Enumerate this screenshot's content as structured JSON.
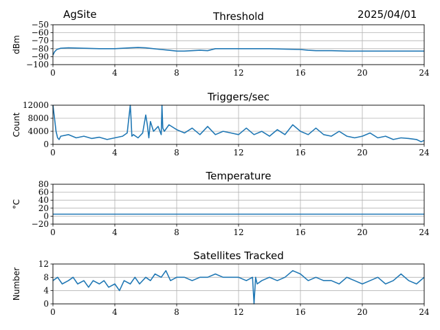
{
  "header": {
    "site": "AgSite",
    "date": "2025/04/01"
  },
  "colors": {
    "line": "#1f77b4",
    "grid": "#b0b0b0"
  },
  "chart_data": [
    {
      "type": "line",
      "title": "Threshold",
      "ylabel": "dBm",
      "xlabel": "",
      "xlim": [
        0,
        24
      ],
      "ylim": [
        -100,
        -50
      ],
      "xticks": [
        "0",
        "4",
        "8",
        "12",
        "16",
        "20",
        "24"
      ],
      "yticks": [
        "−50",
        "−60",
        "−70",
        "−80",
        "−90",
        "−100"
      ],
      "grid": true,
      "series": [
        {
          "x": [
            0,
            0.1,
            0.25,
            0.5,
            1,
            2,
            3,
            4,
            5,
            5.5,
            6,
            6.5,
            7,
            7.5,
            8,
            8.5,
            9,
            9.5,
            10,
            10.5,
            11,
            12,
            13,
            14,
            15,
            16,
            16.5,
            17,
            18,
            19,
            20,
            21,
            22,
            23,
            24
          ],
          "y": [
            -88,
            -84,
            -81,
            -79.5,
            -79,
            -79.5,
            -80,
            -80,
            -79,
            -78.5,
            -79,
            -80,
            -81,
            -82,
            -83,
            -83,
            -82.5,
            -82,
            -82.5,
            -80,
            -80,
            -80,
            -80,
            -80,
            -80.5,
            -81,
            -82,
            -82.5,
            -82.5,
            -83,
            -83,
            -83,
            -83,
            -83,
            -83
          ]
        }
      ]
    },
    {
      "type": "line",
      "title": "Triggers/sec",
      "ylabel": "Count",
      "xlabel": "",
      "xlim": [
        0,
        24
      ],
      "ylim": [
        0,
        12000
      ],
      "xticks": [
        "0",
        "4",
        "8",
        "12",
        "16",
        "20",
        "24"
      ],
      "yticks": [
        "0",
        "4000",
        "8000",
        "12000"
      ],
      "grid": true,
      "series": [
        {
          "x": [
            0,
            0.1,
            0.2,
            0.3,
            0.4,
            0.5,
            1,
            1.5,
            2,
            2.5,
            3,
            3.5,
            4,
            4.5,
            4.8,
            5,
            5.05,
            5.1,
            5.2,
            5.5,
            5.8,
            6,
            6.1,
            6.2,
            6.3,
            6.5,
            6.8,
            7,
            7.05,
            7.1,
            7.2,
            7.5,
            8,
            8.5,
            9,
            9.5,
            10,
            10.5,
            11,
            11.5,
            12,
            12.5,
            13,
            13.5,
            14,
            14.5,
            15,
            15.5,
            16,
            16.5,
            17,
            17.5,
            18,
            18.5,
            19,
            19.5,
            20,
            20.5,
            21,
            21.5,
            22,
            22.5,
            23,
            23.5,
            23.8,
            24
          ],
          "y": [
            12000,
            8000,
            4000,
            2000,
            1500,
            2500,
            3000,
            2000,
            2500,
            1800,
            2200,
            1500,
            2000,
            2500,
            3500,
            12000,
            8000,
            2500,
            3000,
            2000,
            3500,
            9000,
            6000,
            2000,
            7000,
            4000,
            5500,
            3000,
            12000,
            5000,
            4000,
            6000,
            4500,
            3500,
            5000,
            3000,
            5500,
            3000,
            4000,
            3500,
            3000,
            5000,
            3000,
            4000,
            2500,
            4500,
            3000,
            6000,
            4000,
            3000,
            5000,
            3000,
            2500,
            4000,
            2500,
            2000,
            2500,
            3500,
            2000,
            2500,
            1500,
            2000,
            1800,
            1500,
            800,
            1200
          ]
        }
      ]
    },
    {
      "type": "line",
      "title": "Temperature",
      "ylabel": "°C",
      "xlabel": "",
      "xlim": [
        0,
        24
      ],
      "ylim": [
        -20,
        80
      ],
      "xticks": [
        "0",
        "4",
        "8",
        "12",
        "16",
        "20",
        "24"
      ],
      "yticks": [
        "−20",
        "0",
        "20",
        "40",
        "60",
        "80"
      ],
      "grid": true,
      "series": [
        {
          "x": [
            0,
            4,
            8,
            12,
            16,
            20,
            24
          ],
          "y": [
            5,
            5,
            5,
            5,
            5,
            5,
            5
          ]
        }
      ]
    },
    {
      "type": "line",
      "title": "Satellites Tracked",
      "ylabel": "Number",
      "xlabel": "",
      "xlim": [
        0,
        24
      ],
      "ylim": [
        0,
        12
      ],
      "xticks": [
        "0",
        "4",
        "8",
        "12",
        "16",
        "20",
        "24"
      ],
      "yticks": [
        "0",
        "4",
        "8",
        "12"
      ],
      "grid": true,
      "series": [
        {
          "x": [
            0,
            0.3,
            0.6,
            1,
            1.3,
            1.6,
            2,
            2.3,
            2.6,
            3,
            3.3,
            3.6,
            4,
            4.3,
            4.6,
            5,
            5.3,
            5.6,
            6,
            6.3,
            6.6,
            7,
            7.3,
            7.6,
            8,
            8.5,
            9,
            9.5,
            10,
            10.5,
            11,
            11.5,
            12,
            12.5,
            12.9,
            13.0,
            13.1,
            13.2,
            13.5,
            14,
            14.5,
            15,
            15.5,
            16,
            16.5,
            17,
            17.5,
            18,
            18.5,
            19,
            19.5,
            20,
            20.5,
            21,
            21.5,
            22,
            22.5,
            23,
            23.5,
            24
          ],
          "y": [
            7,
            8,
            6,
            7,
            8,
            6,
            7,
            5,
            7,
            6,
            7,
            5,
            6,
            4,
            7,
            6,
            8,
            6,
            8,
            7,
            9,
            8,
            10,
            7,
            8,
            8,
            7,
            8,
            8,
            9,
            8,
            8,
            8,
            7,
            8,
            0,
            8,
            6,
            7,
            8,
            7,
            8,
            10,
            9,
            7,
            8,
            7,
            7,
            6,
            8,
            7,
            6,
            7,
            8,
            6,
            7,
            9,
            7,
            6,
            8
          ]
        }
      ]
    }
  ]
}
